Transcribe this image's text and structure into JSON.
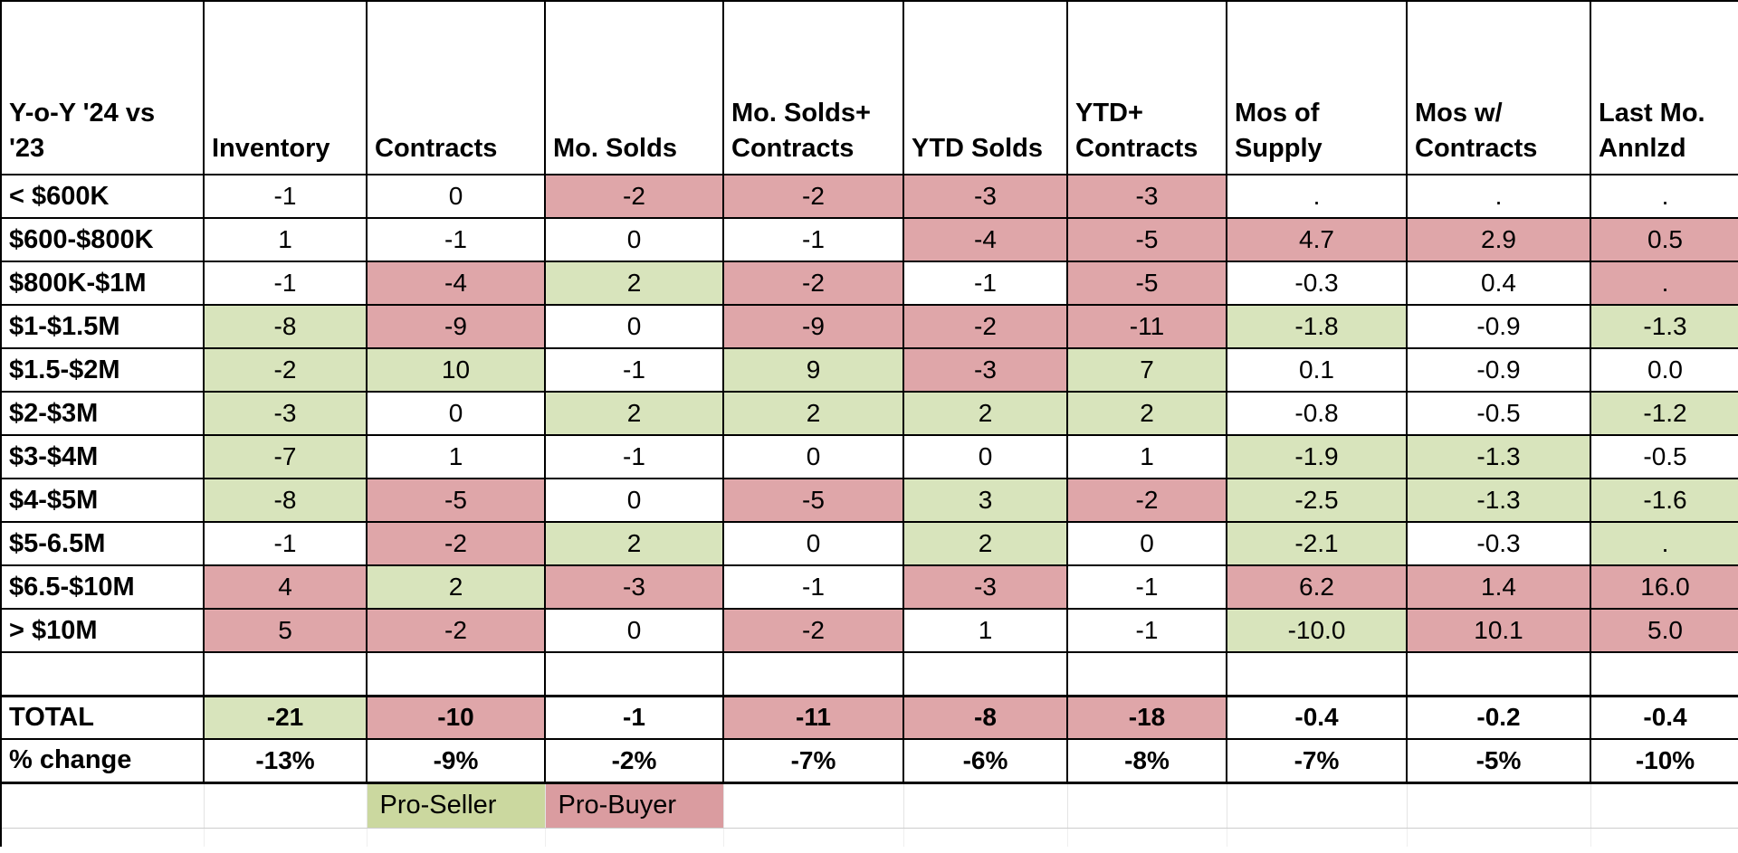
{
  "chart_data": {
    "type": "table",
    "title": "Y-o-Y '24 vs '23",
    "corner_label": "Y-o-Y '24 vs\n'23",
    "columns": [
      "Inventory",
      "Contracts",
      "Mo. Solds",
      "Mo. Solds+\nContracts",
      "YTD Solds",
      "YTD+\nContracts",
      "Mos of\nSupply",
      "Mos w/\nContracts",
      "Last Mo.\nAnnlzd"
    ],
    "rows": [
      {
        "label": "< $600K",
        "cells": [
          [
            "-1",
            "w"
          ],
          [
            "0",
            "w"
          ],
          [
            "-2",
            "p"
          ],
          [
            "-2",
            "p"
          ],
          [
            "-3",
            "p"
          ],
          [
            "-3",
            "p"
          ],
          [
            ".",
            "w"
          ],
          [
            ".",
            "w"
          ],
          [
            ".",
            "w"
          ]
        ]
      },
      {
        "label": "$600-$800K",
        "cells": [
          [
            "1",
            "w"
          ],
          [
            "-1",
            "w"
          ],
          [
            "0",
            "w"
          ],
          [
            "-1",
            "w"
          ],
          [
            "-4",
            "p"
          ],
          [
            "-5",
            "p"
          ],
          [
            "4.7",
            "p"
          ],
          [
            "2.9",
            "p"
          ],
          [
            "0.5",
            "p"
          ]
        ]
      },
      {
        "label": "$800K-$1M",
        "cells": [
          [
            "-1",
            "w"
          ],
          [
            "-4",
            "p"
          ],
          [
            "2",
            "g"
          ],
          [
            "-2",
            "p"
          ],
          [
            "-1",
            "w"
          ],
          [
            "-5",
            "p"
          ],
          [
            "-0.3",
            "w"
          ],
          [
            "0.4",
            "w"
          ],
          [
            ".",
            "p"
          ]
        ]
      },
      {
        "label": "$1-$1.5M",
        "cells": [
          [
            "-8",
            "g"
          ],
          [
            "-9",
            "p"
          ],
          [
            "0",
            "w"
          ],
          [
            "-9",
            "p"
          ],
          [
            "-2",
            "p"
          ],
          [
            "-11",
            "p"
          ],
          [
            "-1.8",
            "g"
          ],
          [
            "-0.9",
            "w"
          ],
          [
            "-1.3",
            "g"
          ]
        ]
      },
      {
        "label": "$1.5-$2M",
        "cells": [
          [
            "-2",
            "g"
          ],
          [
            "10",
            "g"
          ],
          [
            "-1",
            "w"
          ],
          [
            "9",
            "g"
          ],
          [
            "-3",
            "p"
          ],
          [
            "7",
            "g"
          ],
          [
            "0.1",
            "w"
          ],
          [
            "-0.9",
            "w"
          ],
          [
            "0.0",
            "w"
          ]
        ]
      },
      {
        "label": "$2-$3M",
        "cells": [
          [
            "-3",
            "g"
          ],
          [
            "0",
            "w"
          ],
          [
            "2",
            "g"
          ],
          [
            "2",
            "g"
          ],
          [
            "2",
            "g"
          ],
          [
            "2",
            "g"
          ],
          [
            "-0.8",
            "w"
          ],
          [
            "-0.5",
            "w"
          ],
          [
            "-1.2",
            "g"
          ]
        ]
      },
      {
        "label": "$3-$4M",
        "cells": [
          [
            "-7",
            "g"
          ],
          [
            "1",
            "w"
          ],
          [
            "-1",
            "w"
          ],
          [
            "0",
            "w"
          ],
          [
            "0",
            "w"
          ],
          [
            "1",
            "w"
          ],
          [
            "-1.9",
            "g"
          ],
          [
            "-1.3",
            "g"
          ],
          [
            "-0.5",
            "w"
          ]
        ]
      },
      {
        "label": "$4-$5M",
        "cells": [
          [
            "-8",
            "g"
          ],
          [
            "-5",
            "p"
          ],
          [
            "0",
            "w"
          ],
          [
            "-5",
            "p"
          ],
          [
            "3",
            "g"
          ],
          [
            "-2",
            "p"
          ],
          [
            "-2.5",
            "g"
          ],
          [
            "-1.3",
            "g"
          ],
          [
            "-1.6",
            "g"
          ]
        ]
      },
      {
        "label": "$5-6.5M",
        "cells": [
          [
            "-1",
            "w"
          ],
          [
            "-2",
            "p"
          ],
          [
            "2",
            "g"
          ],
          [
            "0",
            "w"
          ],
          [
            "2",
            "g"
          ],
          [
            "0",
            "w"
          ],
          [
            "-2.1",
            "g"
          ],
          [
            "-0.3",
            "w"
          ],
          [
            ".",
            "g"
          ]
        ]
      },
      {
        "label": "$6.5-$10M",
        "cells": [
          [
            "4",
            "p"
          ],
          [
            "2",
            "g"
          ],
          [
            "-3",
            "p"
          ],
          [
            "-1",
            "w"
          ],
          [
            "-3",
            "p"
          ],
          [
            "-1",
            "w"
          ],
          [
            "6.2",
            "p"
          ],
          [
            "1.4",
            "p"
          ],
          [
            "16.0",
            "p"
          ]
        ]
      },
      {
        "label": "> $10M",
        "cells": [
          [
            "5",
            "p"
          ],
          [
            "-2",
            "p"
          ],
          [
            "0",
            "w"
          ],
          [
            "-2",
            "p"
          ],
          [
            "1",
            "w"
          ],
          [
            "-1",
            "w"
          ],
          [
            "-10.0",
            "g"
          ],
          [
            "10.1",
            "p"
          ],
          [
            "5.0",
            "p"
          ]
        ]
      }
    ],
    "total_row": {
      "label": "TOTAL",
      "cells": [
        [
          "-21",
          "g"
        ],
        [
          "-10",
          "p"
        ],
        [
          "-1",
          "w"
        ],
        [
          "-11",
          "p"
        ],
        [
          "-8",
          "p"
        ],
        [
          "-18",
          "p"
        ],
        [
          "-0.4",
          "w"
        ],
        [
          "-0.2",
          "w"
        ],
        [
          "-0.4",
          "w"
        ]
      ]
    },
    "pct_row": {
      "label": "% change",
      "cells": [
        [
          "-13%",
          "w"
        ],
        [
          "-9%",
          "w"
        ],
        [
          "-2%",
          "w"
        ],
        [
          "-7%",
          "w"
        ],
        [
          "-6%",
          "w"
        ],
        [
          "-8%",
          "w"
        ],
        [
          "-7%",
          "w"
        ],
        [
          "-5%",
          "w"
        ],
        [
          "-10%",
          "w"
        ]
      ]
    },
    "highlight_legend": {
      "green": "Pro-Seller",
      "pink": "Pro-Buyer"
    },
    "colors": {
      "cell_green": "#d8e4bc",
      "cell_pink": "#dfa6a9",
      "legend_green": "#cbd89f",
      "legend_pink": "#da9ca0",
      "grid_black": "#000000"
    },
    "layout": {
      "grid": true,
      "legend_position": "bottom"
    }
  }
}
